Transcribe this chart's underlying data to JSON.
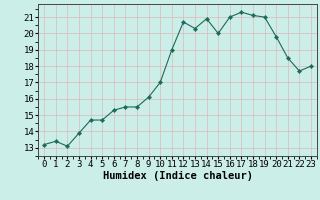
{
  "x": [
    0,
    1,
    2,
    3,
    4,
    5,
    6,
    7,
    8,
    9,
    10,
    11,
    12,
    13,
    14,
    15,
    16,
    17,
    18,
    19,
    20,
    21,
    22,
    23
  ],
  "y": [
    13.2,
    13.4,
    13.1,
    13.9,
    14.7,
    14.7,
    15.3,
    15.5,
    15.5,
    16.1,
    17.0,
    19.0,
    20.7,
    20.3,
    20.9,
    20.0,
    21.0,
    21.3,
    21.1,
    21.0,
    19.8,
    18.5,
    17.7,
    18.0
  ],
  "line_color": "#1a6b5a",
  "marker": "D",
  "marker_size": 2.2,
  "bg_color": "#cceee8",
  "grid_color_major": "#ddb8b8",
  "xlabel": "Humidex (Indice chaleur)",
  "xlabel_fontsize": 7.5,
  "tick_fontsize": 6.5,
  "ylim": [
    12.5,
    21.8
  ],
  "xlim": [
    -0.5,
    23.5
  ],
  "yticks": [
    13,
    14,
    15,
    16,
    17,
    18,
    19,
    20,
    21
  ],
  "xticks": [
    0,
    1,
    2,
    3,
    4,
    5,
    6,
    7,
    8,
    9,
    10,
    11,
    12,
    13,
    14,
    15,
    16,
    17,
    18,
    19,
    20,
    21,
    22,
    23
  ]
}
